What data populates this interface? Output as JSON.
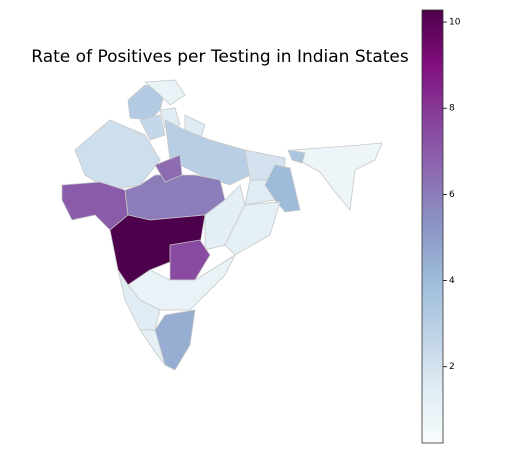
{
  "chart_data": {
    "type": "choropleth",
    "title": "Rate of Positives per Testing in Indian States",
    "colormap": "BuPu",
    "clim": [
      0.23,
      10.28
    ],
    "colorbar_ticks": [
      2,
      4,
      6,
      8,
      10
    ],
    "regions": [
      3.2,
      1.0,
      1.5,
      2.5,
      1.5,
      2.2,
      3.0,
      2.0,
      7.0,
      6.0,
      6.5,
      10.3,
      1.3,
      1.5,
      4.0,
      1.2,
      7.5,
      1.0,
      1.5,
      4.5,
      1.2,
      0.8,
      3.5
    ]
  }
}
